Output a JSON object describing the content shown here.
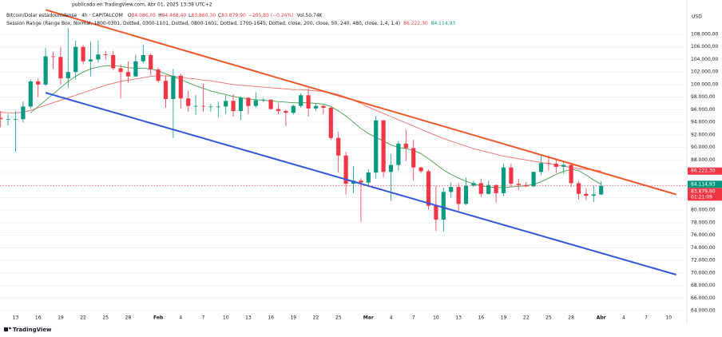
{
  "chart_data": {
    "type": "candlestick",
    "published": "publicado en TradingView.com, Abr 01, 2025 13:38 UTC+2",
    "symbol": "Bitcoin/Dolar estadounidense · 4h · CAPITALCOM",
    "ohlc": [
      {
        "key": "O",
        "text": "84.086,05"
      },
      {
        "key": "H",
        "text": "84.468,40"
      },
      {
        "key": "L",
        "text": "83.860,30"
      },
      {
        "key": "C",
        "text": "83.879,90"
      }
    ],
    "change": "−205,80 (−0,24%)",
    "volume": "Vol.50,74K",
    "indicator": {
      "name": "Session Range (Range Box, Normal, 1800-0301, Dotted, 0300-1101, Dotted, 0800-1601, Dotted, 1700-1645, Dotted, close, 200, close, 50, 240, 480, close, 1,4, 1,4)",
      "values": [
        {
          "text": "86.222,30",
          "color": "#f23645"
        },
        {
          "text": "84.114,93",
          "color": "#089981"
        }
      ]
    },
    "currency": "USD",
    "footer": "TradingView",
    "categories": [
      null,
      null,
      "13",
      null,
      null,
      "16",
      null,
      null,
      "19",
      null,
      null,
      "22",
      null,
      null,
      "25",
      null,
      null,
      "28",
      null,
      null,
      null,
      "Feb",
      null,
      null,
      "4",
      null,
      null,
      "7",
      null,
      null,
      "10",
      null,
      null,
      "13",
      null,
      null,
      "16",
      null,
      null,
      "19",
      null,
      null,
      "22",
      null,
      null,
      "25",
      null,
      null,
      null,
      "Mar",
      null,
      null,
      "4",
      null,
      null,
      "7",
      null,
      null,
      "10",
      null,
      null,
      "13",
      null,
      null,
      "16",
      null,
      null,
      "19",
      null,
      null,
      "22",
      null,
      null,
      "25",
      null,
      null,
      "28",
      null,
      null,
      null,
      "Abr",
      null,
      null,
      "4",
      null,
      null,
      "7",
      null,
      null,
      "10",
      null
    ],
    "candles": {
      "up_color": "#089981",
      "down_color": "#f23645",
      "open": [
        94700,
        94500,
        94500,
        94500,
        96500,
        100500,
        100000,
        104500,
        104400,
        101000,
        102000,
        106000,
        103700,
        104000,
        104800,
        104700,
        102600,
        102000,
        101300,
        103700,
        104700,
        102400,
        100600,
        97700,
        101400,
        97800,
        96600,
        96600,
        96500,
        96500,
        96500,
        97400,
        95800,
        97900,
        96600,
        97500,
        97600,
        96100,
        95800,
        95500,
        96600,
        98300,
        96200,
        96600,
        96300,
        91500,
        88700,
        84200,
        84700,
        84400,
        86000,
        94300,
        86100,
        87200,
        90600,
        89900,
        86800,
        86200,
        80700,
        78500,
        82900,
        83700,
        81000,
        83900,
        84300,
        82600,
        84000,
        82700,
        86800,
        84200,
        84000,
        83800,
        86100,
        87500,
        87400,
        86900,
        87200,
        84300,
        82600,
        82300,
        82500,
        null,
        null,
        null,
        null,
        null,
        null,
        null,
        null,
        null,
        null
      ],
      "high": [
        95800,
        95300,
        95800,
        97300,
        100800,
        101000,
        105800,
        105200,
        106000,
        109000,
        107000,
        106300,
        106800,
        107000,
        105400,
        105400,
        103200,
        103700,
        104700,
        106300,
        105000,
        102700,
        101400,
        102500,
        101700,
        99000,
        98300,
        100100,
        96900,
        97300,
        98300,
        98500,
        98100,
        98000,
        98800,
        97900,
        97700,
        97000,
        96000,
        96800,
        98600,
        99500,
        96900,
        96800,
        96500,
        92500,
        89300,
        87000,
        85100,
        86500,
        95000,
        94400,
        88900,
        91000,
        92800,
        91200,
        86900,
        86500,
        83900,
        83600,
        84400,
        84300,
        85200,
        84700,
        85000,
        84700,
        84100,
        87400,
        87400,
        85000,
        84500,
        86100,
        88700,
        88700,
        88200,
        87700,
        87500,
        84700,
        83500,
        83900,
        84600,
        null,
        null,
        null,
        null,
        null,
        null,
        null,
        null,
        null,
        null
      ],
      "low": [
        93200,
        93500,
        89300,
        94000,
        96200,
        98000,
        99800,
        102500,
        100000,
        99500,
        100800,
        103200,
        101300,
        103500,
        104000,
        102300,
        97800,
        100300,
        101200,
        103400,
        101500,
        100300,
        96300,
        91500,
        96200,
        95700,
        95200,
        95700,
        95700,
        94800,
        95300,
        94900,
        94400,
        95300,
        96300,
        97200,
        96000,
        95300,
        93400,
        95200,
        96300,
        94900,
        95800,
        95300,
        91200,
        86000,
        82500,
        82700,
        78200,
        83700,
        85000,
        85200,
        81500,
        86300,
        87800,
        84700,
        85900,
        80100,
        76700,
        76600,
        82000,
        79900,
        80800,
        83700,
        82100,
        82500,
        81200,
        82300,
        83700,
        83200,
        83700,
        83700,
        85600,
        86300,
        85900,
        85800,
        83700,
        81700,
        81600,
        81300,
        82400,
        null,
        null,
        null,
        null,
        null,
        null,
        null,
        null,
        null,
        null
      ],
      "close": [
        94500,
        94500,
        94500,
        96500,
        100500,
        100000,
        104500,
        104400,
        101000,
        102000,
        106000,
        103700,
        104000,
        104800,
        104700,
        102600,
        102000,
        101300,
        103700,
        104700,
        102400,
        100600,
        97700,
        101400,
        97800,
        96600,
        96600,
        96500,
        96500,
        96500,
        97400,
        95800,
        97900,
        96600,
        97500,
        97600,
        96100,
        95800,
        95500,
        96600,
        98300,
        96200,
        96600,
        96300,
        91500,
        88700,
        84200,
        84700,
        84400,
        86000,
        94300,
        86100,
        87200,
        90600,
        89900,
        86800,
        86200,
        80700,
        78500,
        82900,
        83700,
        81000,
        83900,
        84300,
        82600,
        84000,
        82700,
        86800,
        84200,
        84000,
        83800,
        86100,
        87500,
        87400,
        86900,
        87200,
        84300,
        82600,
        82300,
        82500,
        83880,
        null,
        null,
        null,
        null,
        null,
        null,
        null,
        null,
        null,
        null
      ]
    },
    "lines": [
      {
        "color": "#ef6e6a",
        "width": 0.9,
        "values": [
          95600,
          95500,
          95500,
          95600,
          95900,
          96300,
          96700,
          97100,
          97500,
          97900,
          98300,
          98700,
          99100,
          99500,
          99900,
          100200,
          100500,
          100700,
          100900,
          101100,
          101300,
          101400,
          101400,
          101300,
          101200,
          101000,
          100900,
          100700,
          100600,
          100400,
          100200,
          100000,
          99900,
          99800,
          99700,
          99600,
          99500,
          99400,
          99300,
          99200,
          99200,
          99100,
          99000,
          98900,
          98700,
          98400,
          98000,
          97500,
          97000,
          96400,
          95900,
          95400,
          94900,
          94400,
          93900,
          93400,
          92900,
          92400,
          91900,
          91400,
          91000,
          90600,
          90200,
          89800,
          89500,
          89200,
          88900,
          88600,
          88400,
          88200,
          88000,
          87800,
          87600,
          87400,
          87200,
          87000,
          86800,
          86600,
          86500,
          86400,
          86222.3,
          null,
          null,
          null,
          null,
          null,
          null,
          null,
          null,
          null,
          null
        ]
      },
      {
        "color": "#43a047",
        "width": 0.9,
        "values": [
          null,
          null,
          null,
          null,
          95500,
          96500,
          97500,
          98500,
          99500,
          100500,
          101300,
          102000,
          102500,
          102800,
          103000,
          103000,
          102900,
          102700,
          102600,
          102600,
          102500,
          102200,
          101700,
          101300,
          100800,
          100300,
          99800,
          99400,
          99000,
          98700,
          98400,
          98100,
          97900,
          97700,
          97600,
          97500,
          97400,
          97300,
          97200,
          97100,
          97100,
          97100,
          97000,
          96900,
          96500,
          95800,
          95000,
          94000,
          93000,
          92200,
          91600,
          91000,
          90400,
          90000,
          89800,
          89500,
          89000,
          88200,
          87300,
          86400,
          85700,
          85100,
          84600,
          84200,
          83900,
          83700,
          83600,
          83600,
          83700,
          83800,
          83900,
          84100,
          84500,
          85100,
          85700,
          86200,
          86500,
          86300,
          85600,
          84800,
          84114.93,
          null,
          null,
          null,
          null,
          null,
          null,
          null,
          null,
          null,
          null
        ]
      },
      {
        "color": "#f0592a",
        "width": 2,
        "values": [
          null,
          null,
          null,
          null,
          null,
          null,
          111900,
          111550,
          111200,
          110850,
          110500,
          110150,
          109800,
          109450,
          109100,
          108750,
          108400,
          108050,
          107700,
          107350,
          107000,
          106650,
          106300,
          105950,
          105600,
          105250,
          104900,
          104550,
          104200,
          103850,
          103500,
          103150,
          102800,
          102450,
          102100,
          101750,
          101400,
          101050,
          100700,
          100350,
          100000,
          99650,
          99300,
          98950,
          98600,
          98250,
          97900,
          97550,
          97200,
          96850,
          96500,
          96150,
          95800,
          95450,
          95100,
          94750,
          94400,
          94050,
          93700,
          93350,
          93000,
          92650,
          92300,
          91950,
          91600,
          91250,
          90900,
          90550,
          90200,
          89850,
          89500,
          89150,
          88800,
          88450,
          88100,
          87750,
          87400,
          87050,
          86700,
          86350,
          86000,
          85650,
          85300,
          84950,
          84600,
          84250,
          83900,
          83550,
          83200,
          82850,
          82500
        ]
      },
      {
        "color": "#3156dc",
        "width": 2,
        "values": [
          null,
          null,
          null,
          null,
          null,
          null,
          98700,
          98355,
          98010,
          97665,
          97320,
          96975,
          96630,
          96285,
          95940,
          95595,
          95250,
          94905,
          94560,
          94215,
          93870,
          93525,
          93180,
          92835,
          92490,
          92145,
          91800,
          91455,
          91110,
          90765,
          90420,
          90075,
          89730,
          89385,
          89040,
          88695,
          88350,
          88005,
          87660,
          87315,
          86970,
          86625,
          86280,
          85935,
          85590,
          85245,
          84900,
          84555,
          84210,
          83865,
          83520,
          83175,
          82830,
          82485,
          82140,
          81795,
          81450,
          81105,
          80760,
          80415,
          80070,
          79725,
          79380,
          79035,
          78690,
          78345,
          78000,
          77655,
          77310,
          76965,
          76620,
          76275,
          75930,
          75585,
          75240,
          74895,
          74550,
          74205,
          73860,
          73515,
          73170,
          72825,
          72480,
          72135,
          71790,
          71445,
          71100,
          70755,
          70410,
          70065,
          69720
        ]
      }
    ],
    "price_tags": [
      {
        "value": 86222.3,
        "label": "86.222,30",
        "color": "#f23645"
      },
      {
        "value": 84114.93,
        "label": "84.114,93",
        "color": "#089981"
      },
      {
        "value": 83879.9,
        "label": "83.879,90",
        "color": "#f23645",
        "countdown": "01:21:09",
        "dotted_line": true
      }
    ],
    "ylim": [
      63618,
      113468
    ],
    "yticks": [
      {
        "value": 64000,
        "label": "64.000,00"
      },
      {
        "value": 66000,
        "label": "66.000,00"
      },
      {
        "value": 68000,
        "label": "68.000,00"
      },
      {
        "value": 70000,
        "label": "70.000,00"
      },
      {
        "value": 72000,
        "label": "72.000,00"
      },
      {
        "value": 74000,
        "label": "74.000,00"
      },
      {
        "value": 76000,
        "label": "76.000,00"
      },
      {
        "value": 78000,
        "label": "78.000,00"
      },
      {
        "value": 80000,
        "label": "80.000,00"
      },
      {
        "value": 82000,
        "label": "82.000,00"
      },
      {
        "value": 84000,
        "label": "84.000,00"
      },
      {
        "value": 86000,
        "label": "86.000,00"
      },
      {
        "value": 88000,
        "label": "88.000,00"
      },
      {
        "value": 90000,
        "label": "90.000,00"
      },
      {
        "value": 92000,
        "label": "92.000,00"
      },
      {
        "value": 94000,
        "label": "94.000,00"
      },
      {
        "value": 96000,
        "label": "96.000,00"
      },
      {
        "value": 98000,
        "label": "98.000,00"
      },
      {
        "value": 100000,
        "label": "100.000,00"
      },
      {
        "value": 102000,
        "label": "102.000,00"
      },
      {
        "value": 104000,
        "label": "104.000,00"
      },
      {
        "value": 106000,
        "label": "106.000,00"
      },
      {
        "value": 108000,
        "label": "108.000,00"
      }
    ],
    "grid": true
  }
}
